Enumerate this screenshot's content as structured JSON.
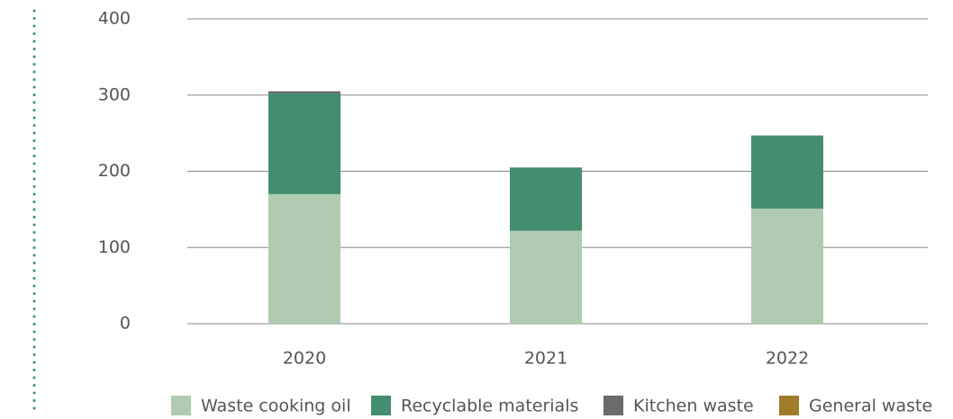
{
  "chart_data": {
    "type": "stacked_bar",
    "categories": [
      "2020",
      "2021",
      "2022"
    ],
    "series": [
      {
        "name": "Waste cooking oil",
        "color": "#b0cbb0",
        "values": [
          170,
          122,
          151
        ]
      },
      {
        "name": "Recyclable materials",
        "color": "#428e6e",
        "values": [
          132,
          83,
          96
        ]
      },
      {
        "name": "Kitchen waste",
        "color": "#6b6b6e",
        "values": [
          3,
          0,
          0
        ]
      },
      {
        "name": "General waste",
        "color": "#a07c2a",
        "values": [
          0,
          0,
          0
        ]
      }
    ],
    "ylim": [
      0,
      400
    ],
    "yticks": [
      0,
      100,
      200,
      300,
      400
    ],
    "grid": true,
    "legend": "bottom"
  }
}
